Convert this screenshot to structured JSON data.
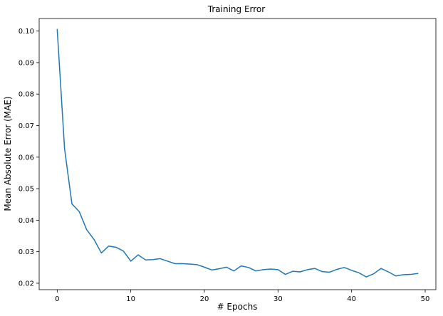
{
  "chart_data": {
    "type": "line",
    "title": "Training Error",
    "xlabel": "# Epochs",
    "ylabel": "Mean Absolute Error (MAE)",
    "xlim": [
      -2.45,
      51.45
    ],
    "ylim": [
      0.01796,
      0.10398
    ],
    "xticks": [
      0,
      10,
      20,
      30,
      40,
      50
    ],
    "yticks": [
      0.02,
      0.03,
      0.04,
      0.05,
      0.06,
      0.07,
      0.08,
      0.09,
      0.1
    ],
    "xtick_labels": [
      "0",
      "10",
      "20",
      "30",
      "40",
      "50"
    ],
    "ytick_labels": [
      "0.02",
      "0.03",
      "0.04",
      "0.05",
      "0.06",
      "0.07",
      "0.08",
      "0.09",
      "0.10"
    ],
    "grid": false,
    "series": [
      {
        "color": "#1f77b4",
        "x": [
          0,
          1,
          2,
          3,
          4,
          5,
          6,
          7,
          8,
          9,
          10,
          11,
          12,
          13,
          14,
          15,
          16,
          17,
          18,
          19,
          20,
          21,
          22,
          23,
          24,
          25,
          26,
          27,
          28,
          29,
          30,
          31,
          32,
          33,
          34,
          35,
          36,
          37,
          38,
          39,
          40,
          41,
          42,
          43,
          44,
          45,
          46,
          47,
          48,
          49
        ],
        "y": [
          0.1005,
          0.0627,
          0.0452,
          0.0427,
          0.037,
          0.0339,
          0.0296,
          0.0318,
          0.0314,
          0.0302,
          0.027,
          0.029,
          0.0274,
          0.0275,
          0.0278,
          0.027,
          0.0262,
          0.0262,
          0.0261,
          0.0259,
          0.0251,
          0.0242,
          0.0246,
          0.0251,
          0.0239,
          0.0255,
          0.025,
          0.0239,
          0.0243,
          0.0245,
          0.0243,
          0.0228,
          0.0238,
          0.0236,
          0.0243,
          0.0247,
          0.0237,
          0.0235,
          0.0244,
          0.025,
          0.0241,
          0.0233,
          0.022,
          0.023,
          0.0247,
          0.0236,
          0.0223,
          0.0227,
          0.0228,
          0.0231
        ]
      }
    ]
  }
}
